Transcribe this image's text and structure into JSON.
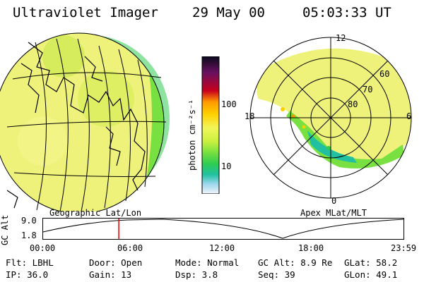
{
  "header": {
    "instrument": "Ultraviolet Imager",
    "date": "29 May 00",
    "time": "05:03:33 UT"
  },
  "colorbar": {
    "unit_label": "photon cm⁻²s⁻¹",
    "ticks": [
      "100",
      "10"
    ],
    "colors": [
      "#0a0a1c",
      "#401050",
      "#8a1060",
      "#c8001c",
      "#ff4000",
      "#ff9800",
      "#ffd000",
      "#f2f55a",
      "#c8f040",
      "#78e040",
      "#30cc50",
      "#20c0a0",
      "#4cb8e0",
      "#a0d8f0",
      "#f0f4f8"
    ]
  },
  "geo_map": {
    "caption": "Geographic Lat/Lon"
  },
  "polar_map": {
    "caption": "Apex MLat/MLT",
    "mlt_labels": {
      "top": "12",
      "left": "18",
      "right": "6",
      "bottom": "0"
    },
    "lat_labels": [
      "60",
      "70",
      "80"
    ]
  },
  "timeline": {
    "ylabel": "GC Alt",
    "ytick_top": "9.0",
    "ytick_bottom": "1.8",
    "xticks": [
      "00:00",
      "06:00",
      "12:00",
      "18:00",
      "23:59"
    ],
    "current_time_fraction": 0.21
  },
  "footer": {
    "filter": "Flt: LBHL",
    "ip": "IP: 36.0",
    "door": "Door: Open",
    "gain": "Gain: 13",
    "mode": "Mode: Normal",
    "dsp": "Dsp:    3.8",
    "gc_alt": "GC Alt: 8.9 Re",
    "seq": "Seq: 39",
    "glat": "GLat:  58.2",
    "glon": "GLon:  49.1"
  }
}
